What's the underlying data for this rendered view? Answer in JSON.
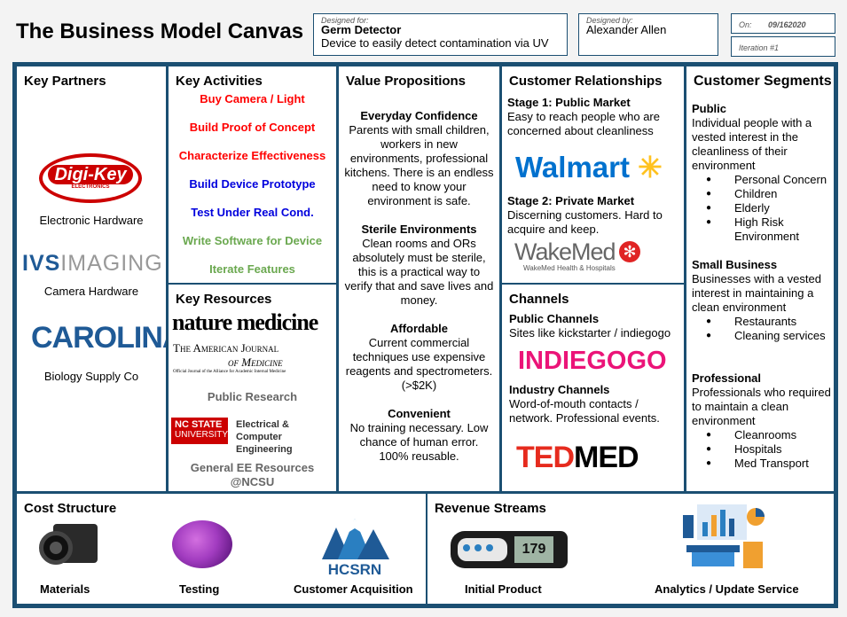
{
  "header": {
    "title": "The Business Model Canvas",
    "designed_for_label": "Designed for:",
    "product_name": "Germ Detector",
    "product_desc": "Device to easily detect contamination via UV",
    "designed_by_label": "Designed by:",
    "designer": "Alexander Allen",
    "on_label": "On:",
    "date": "09/162020",
    "iteration": "Iteration #1"
  },
  "key_partners": {
    "heading": "Key Partners",
    "logo1": "Digi-Key",
    "logo1_sub": "ELECTRONICS",
    "item1": "Electronic Hardware",
    "logo2a": "IVS",
    "logo2b": "IMAGING",
    "item2": "Camera Hardware",
    "logo3": "CAROLINA",
    "item3": "Biology Supply Co"
  },
  "key_activities": {
    "heading": "Key Activities",
    "items": [
      "Buy Camera / Light",
      "Build Proof of Concept",
      "Characterize Effectiveness",
      "Build Device Prototype",
      "Test Under Real Cond.",
      "Write Software for Device",
      "Iterate Features"
    ]
  },
  "key_resources": {
    "heading": "Key Resources",
    "logo1": "nature medicine",
    "logo2a": "The American Journal",
    "logo2b": "of Medicine",
    "logo2c": "Official Journal of the Alliance for Academic Internal Medicine",
    "item1": "Public Research",
    "logo3a": "NC STATE",
    "logo3b": "UNIVERSITY",
    "logo3c": "Electrical &",
    "logo3d": "Computer Engineering",
    "item2a": "General EE Resources",
    "item2b": "@NCSU"
  },
  "value_propositions": {
    "heading": "Value Propositions",
    "items": [
      {
        "title": "Everyday Confidence",
        "text": "Parents with small children, workers in new environments, professional kitchens. There is an endless need to know your environment is safe."
      },
      {
        "title": "Sterile Environments",
        "text": "Clean rooms and ORs absolutely must be sterile, this is a practical way to verify that and save lives and money."
      },
      {
        "title": "Affordable",
        "text": "Current commercial techniques use expensive reagents and spectrometers. (>$2K)"
      },
      {
        "title": "Convenient",
        "text": "No training necessary. Low chance of human error. 100% reusable."
      }
    ]
  },
  "customer_relationships": {
    "heading": "Customer Relationships",
    "stage1_title": "Stage 1: Public Market",
    "stage1_text": "Easy to reach people who are concerned about cleanliness",
    "logo1": "Walmart",
    "stage2_title": "Stage 2: Private Market",
    "stage2_text": "Discerning customers. Hard to acquire and keep.",
    "logo2": "WakeMed",
    "logo2_sub": "WakeMed Health & Hospitals"
  },
  "channels": {
    "heading": "Channels",
    "public_title": "Public Channels",
    "public_text": "Sites like kickstarter / indiegogo",
    "logo1": "INDIEGOGO",
    "industry_title": "Industry Channels",
    "industry_text": "Word-of-mouth contacts / network. Professional events.",
    "logo2a": "TED",
    "logo2b": "MED"
  },
  "customer_segments": {
    "heading": "Customer Segments",
    "groups": [
      {
        "title": "Public",
        "text": "Individual people with a vested interest in the cleanliness of their environment",
        "bullets": [
          "Personal Concern",
          "Children",
          "Elderly",
          "High Risk Environment"
        ]
      },
      {
        "title": "Small Business",
        "text": "Businesses with a vested interest in maintaining a clean environment",
        "bullets": [
          "Restaurants",
          "Cleaning services"
        ]
      },
      {
        "title": "Professional",
        "text": "Professionals who required to maintain a clean environment",
        "bullets": [
          "Cleanrooms",
          "Hospitals",
          "Med Transport"
        ]
      }
    ]
  },
  "cost_structure": {
    "heading": "Cost Structure",
    "items": [
      "Materials",
      "Testing",
      "Customer Acquisition"
    ],
    "logo": "HCSRN"
  },
  "revenue_streams": {
    "heading": "Revenue Streams",
    "items": [
      "Initial Product",
      "Analytics / Update Service"
    ],
    "device_reading": "179"
  },
  "colors": {
    "border": "#1b4f72",
    "red": "#ff0000",
    "blue": "#0000dd",
    "green": "#6aa84f",
    "walmart": "#0071ce",
    "walmart_spark": "#ffc220",
    "indiegogo": "#eb1478",
    "ted": "#e62b1e",
    "digikey": "#cc0000",
    "carolina": "#1f5a96"
  }
}
